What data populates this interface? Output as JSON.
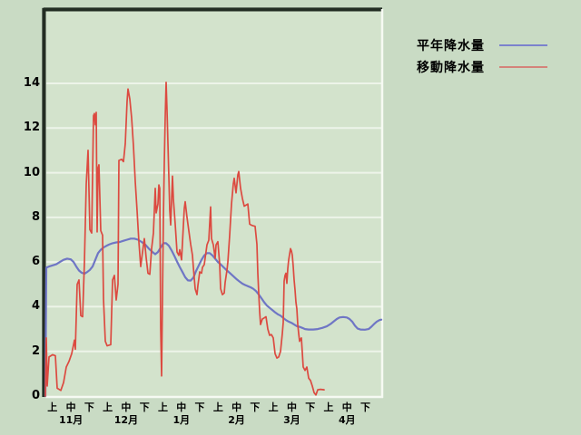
{
  "chart_data": {
    "type": "line",
    "title": "",
    "y_axis": {
      "ticks": [
        0,
        2,
        4,
        6,
        8,
        10,
        12,
        14
      ],
      "min": 0,
      "max": 15.5,
      "gridlines": true
    },
    "x_axis": {
      "period_labels": [
        "上",
        "中",
        "下",
        "上",
        "中",
        "下",
        "上",
        "中",
        "下",
        "上",
        "中",
        "下",
        "上",
        "中",
        "下",
        "上",
        "中",
        "下"
      ],
      "month_labels": [
        "11月",
        "12月",
        "1月",
        "2月",
        "3月",
        "4月"
      ]
    },
    "legend": {
      "position": "top-right",
      "items": [
        {
          "label": "平年降水量",
          "color": "#7b82cd"
        },
        {
          "label": "移動降水量",
          "color": "#d4837a"
        }
      ]
    },
    "layout": {
      "plot_x_range": [
        50,
        420
      ],
      "plot_y_range": [
        10,
        437
      ]
    },
    "series": [
      {
        "name": "平年降水量",
        "color": "#6f76c5",
        "width": 2.2,
        "points": [
          [
            50,
            0
          ],
          [
            51,
            5.75
          ],
          [
            54,
            5.8
          ],
          [
            58,
            5.85
          ],
          [
            62,
            5.9
          ],
          [
            66,
            6.0
          ],
          [
            70,
            6.1
          ],
          [
            74,
            6.15
          ],
          [
            78,
            6.12
          ],
          [
            81,
            6.0
          ],
          [
            84,
            5.8
          ],
          [
            87,
            5.62
          ],
          [
            90,
            5.52
          ],
          [
            93,
            5.48
          ],
          [
            96,
            5.55
          ],
          [
            99,
            5.65
          ],
          [
            102,
            5.8
          ],
          [
            105,
            6.1
          ],
          [
            108,
            6.4
          ],
          [
            111,
            6.55
          ],
          [
            114,
            6.65
          ],
          [
            117,
            6.72
          ],
          [
            120,
            6.78
          ],
          [
            124,
            6.84
          ],
          [
            128,
            6.88
          ],
          [
            132,
            6.9
          ],
          [
            136,
            6.95
          ],
          [
            140,
            7.0
          ],
          [
            144,
            7.05
          ],
          [
            148,
            7.05
          ],
          [
            152,
            7.0
          ],
          [
            156,
            6.9
          ],
          [
            160,
            6.78
          ],
          [
            164,
            6.6
          ],
          [
            168,
            6.45
          ],
          [
            171,
            6.35
          ],
          [
            174,
            6.45
          ],
          [
            177,
            6.65
          ],
          [
            180,
            6.84
          ],
          [
            183,
            6.84
          ],
          [
            186,
            6.73
          ],
          [
            189,
            6.52
          ],
          [
            192,
            6.28
          ],
          [
            195,
            6.02
          ],
          [
            198,
            5.78
          ],
          [
            201,
            5.55
          ],
          [
            204,
            5.32
          ],
          [
            207,
            5.18
          ],
          [
            210,
            5.17
          ],
          [
            213,
            5.3
          ],
          [
            216,
            5.6
          ],
          [
            219,
            5.85
          ],
          [
            222,
            6.1
          ],
          [
            225,
            6.3
          ],
          [
            228,
            6.4
          ],
          [
            231,
            6.4
          ],
          [
            234,
            6.3
          ],
          [
            237,
            6.15
          ],
          [
            240,
            6.0
          ],
          [
            243,
            5.9
          ],
          [
            246,
            5.78
          ],
          [
            249,
            5.66
          ],
          [
            252,
            5.55
          ],
          [
            255,
            5.44
          ],
          [
            258,
            5.33
          ],
          [
            261,
            5.22
          ],
          [
            264,
            5.12
          ],
          [
            267,
            5.03
          ],
          [
            270,
            4.97
          ],
          [
            273,
            4.92
          ],
          [
            276,
            4.87
          ],
          [
            279,
            4.8
          ],
          [
            282,
            4.7
          ],
          [
            285,
            4.55
          ],
          [
            288,
            4.38
          ],
          [
            291,
            4.2
          ],
          [
            294,
            4.05
          ],
          [
            297,
            3.95
          ],
          [
            300,
            3.85
          ],
          [
            303,
            3.75
          ],
          [
            306,
            3.66
          ],
          [
            309,
            3.6
          ],
          [
            312,
            3.5
          ],
          [
            315,
            3.4
          ],
          [
            318,
            3.33
          ],
          [
            321,
            3.28
          ],
          [
            324,
            3.2
          ],
          [
            327,
            3.13
          ],
          [
            330,
            3.1
          ],
          [
            333,
            3.05
          ],
          [
            336,
            3.0
          ],
          [
            340,
            2.98
          ],
          [
            345,
            2.98
          ],
          [
            350,
            3.0
          ],
          [
            355,
            3.05
          ],
          [
            360,
            3.12
          ],
          [
            364,
            3.22
          ],
          [
            368,
            3.35
          ],
          [
            371,
            3.45
          ],
          [
            374,
            3.52
          ],
          [
            378,
            3.54
          ],
          [
            382,
            3.52
          ],
          [
            385,
            3.45
          ],
          [
            388,
            3.33
          ],
          [
            391,
            3.15
          ],
          [
            394,
            3.02
          ],
          [
            397,
            2.98
          ],
          [
            402,
            2.97
          ],
          [
            406,
            3.0
          ],
          [
            409,
            3.1
          ],
          [
            412,
            3.22
          ],
          [
            415,
            3.33
          ],
          [
            418,
            3.4
          ],
          [
            420,
            3.42
          ]
        ]
      },
      {
        "name": "移動降水量",
        "color": "#dc4a40",
        "width": 1.7,
        "points": [
          [
            50,
            0
          ],
          [
            51,
            2.6
          ],
          [
            52,
            0.45
          ],
          [
            54,
            1.75
          ],
          [
            58,
            1.85
          ],
          [
            61,
            1.8
          ],
          [
            63,
            0.35
          ],
          [
            67,
            0.25
          ],
          [
            70,
            0.6
          ],
          [
            73,
            1.3
          ],
          [
            76,
            1.55
          ],
          [
            79,
            1.9
          ],
          [
            82,
            2.5
          ],
          [
            83,
            2.1
          ],
          [
            85,
            5.0
          ],
          [
            87,
            5.2
          ],
          [
            89,
            3.6
          ],
          [
            91,
            3.55
          ],
          [
            93,
            6.0
          ],
          [
            95,
            9.5
          ],
          [
            97,
            11.0
          ],
          [
            99,
            7.45
          ],
          [
            101,
            7.3
          ],
          [
            103,
            12.55
          ],
          [
            104,
            12.65
          ],
          [
            105,
            12.15
          ],
          [
            106,
            12.7
          ],
          [
            107,
            7.35
          ],
          [
            108,
            10.2
          ],
          [
            109,
            10.35
          ],
          [
            111,
            7.4
          ],
          [
            113,
            7.2
          ],
          [
            114,
            4.35
          ],
          [
            116,
            2.45
          ],
          [
            118,
            2.25
          ],
          [
            122,
            2.3
          ],
          [
            124,
            5.2
          ],
          [
            126,
            5.4
          ],
          [
            128,
            4.3
          ],
          [
            130,
            5.0
          ],
          [
            131,
            10.55
          ],
          [
            134,
            10.6
          ],
          [
            136,
            10.5
          ],
          [
            138,
            11.3
          ],
          [
            140,
            13.2
          ],
          [
            141,
            13.75
          ],
          [
            143,
            13.3
          ],
          [
            145,
            12.45
          ],
          [
            147,
            11.2
          ],
          [
            149,
            9.6
          ],
          [
            151,
            8.3
          ],
          [
            153,
            6.9
          ],
          [
            155,
            5.8
          ],
          [
            157,
            6.45
          ],
          [
            159,
            7.05
          ],
          [
            161,
            6.2
          ],
          [
            163,
            5.5
          ],
          [
            165,
            5.45
          ],
          [
            167,
            6.6
          ],
          [
            169,
            7.3
          ],
          [
            171,
            9.3
          ],
          [
            172,
            8.2
          ],
          [
            174,
            8.6
          ],
          [
            175,
            9.45
          ],
          [
            176,
            9.3
          ],
          [
            177,
            3.0
          ],
          [
            178,
            0.9
          ],
          [
            180,
            8.0
          ],
          [
            181,
            10.5
          ],
          [
            182,
            12.5
          ],
          [
            183,
            14.05
          ],
          [
            184,
            12.8
          ],
          [
            185,
            11.3
          ],
          [
            186,
            9.8
          ],
          [
            187,
            8.3
          ],
          [
            188,
            7.66
          ],
          [
            190,
            9.85
          ],
          [
            191,
            8.8
          ],
          [
            193,
            7.7
          ],
          [
            195,
            6.45
          ],
          [
            197,
            6.3
          ],
          [
            198,
            6.55
          ],
          [
            200,
            6.1
          ],
          [
            203,
            8.4
          ],
          [
            204,
            8.7
          ],
          [
            206,
            8.0
          ],
          [
            208,
            7.4
          ],
          [
            210,
            6.8
          ],
          [
            212,
            6.3
          ],
          [
            213,
            5.76
          ],
          [
            215,
            4.8
          ],
          [
            217,
            4.54
          ],
          [
            218,
            4.95
          ],
          [
            220,
            5.56
          ],
          [
            222,
            5.5
          ],
          [
            223,
            5.76
          ],
          [
            225,
            5.89
          ],
          [
            228,
            6.77
          ],
          [
            230,
            6.98
          ],
          [
            232,
            8.47
          ],
          [
            233,
            7.05
          ],
          [
            235,
            6.77
          ],
          [
            237,
            6.17
          ],
          [
            238,
            6.77
          ],
          [
            240,
            6.91
          ],
          [
            242,
            5.89
          ],
          [
            243,
            4.81
          ],
          [
            245,
            4.54
          ],
          [
            247,
            4.61
          ],
          [
            248,
            5.08
          ],
          [
            250,
            5.63
          ],
          [
            251,
            6.0
          ],
          [
            253,
            7.2
          ],
          [
            255,
            8.6
          ],
          [
            257,
            9.5
          ],
          [
            258,
            9.75
          ],
          [
            260,
            9.1
          ],
          [
            262,
            9.9
          ],
          [
            263,
            10.05
          ],
          [
            265,
            9.3
          ],
          [
            267,
            8.85
          ],
          [
            269,
            8.5
          ],
          [
            271,
            8.55
          ],
          [
            273,
            8.6
          ],
          [
            275,
            7.7
          ],
          [
            277,
            7.65
          ],
          [
            279,
            7.62
          ],
          [
            281,
            7.6
          ],
          [
            283,
            6.8
          ],
          [
            284,
            5.5
          ],
          [
            285,
            4.6
          ],
          [
            286,
            3.8
          ],
          [
            287,
            3.2
          ],
          [
            289,
            3.45
          ],
          [
            291,
            3.5
          ],
          [
            293,
            3.55
          ],
          [
            295,
            3.0
          ],
          [
            297,
            2.72
          ],
          [
            299,
            2.75
          ],
          [
            301,
            2.6
          ],
          [
            303,
            1.9
          ],
          [
            305,
            1.7
          ],
          [
            307,
            1.75
          ],
          [
            309,
            2.0
          ],
          [
            311,
            2.8
          ],
          [
            312,
            3.3
          ],
          [
            313,
            5.15
          ],
          [
            314,
            5.4
          ],
          [
            315,
            5.5
          ],
          [
            316,
            5.05
          ],
          [
            317,
            5.7
          ],
          [
            318,
            6.1
          ],
          [
            319,
            6.35
          ],
          [
            320,
            6.6
          ],
          [
            321,
            6.5
          ],
          [
            322,
            6.3
          ],
          [
            323,
            5.8
          ],
          [
            324,
            5.2
          ],
          [
            325,
            4.75
          ],
          [
            326,
            4.2
          ],
          [
            327,
            3.9
          ],
          [
            328,
            3.2
          ],
          [
            329,
            2.8
          ],
          [
            330,
            2.45
          ],
          [
            331,
            2.55
          ],
          [
            332,
            2.6
          ],
          [
            334,
            1.3
          ],
          [
            336,
            1.15
          ],
          [
            338,
            1.3
          ],
          [
            340,
            0.8
          ],
          [
            342,
            0.7
          ],
          [
            344,
            0.45
          ],
          [
            346,
            0.15
          ],
          [
            348,
            0.05
          ],
          [
            350,
            0.28
          ],
          [
            353,
            0.3
          ],
          [
            357,
            0.28
          ]
        ]
      }
    ]
  },
  "colors": {
    "page_background": "#c9dbc4",
    "plot_background": "#d3e3cc",
    "gridline": "#edf4e9",
    "border_dark": "#232d23",
    "border_light": "#f6faf3",
    "text": "#000000"
  }
}
